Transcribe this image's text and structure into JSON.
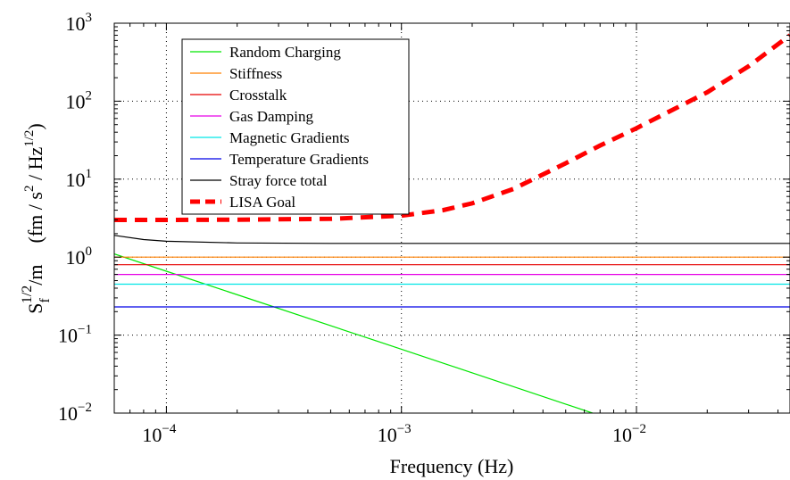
{
  "chart_data": {
    "type": "line",
    "x_scale": "log",
    "y_scale": "log",
    "xlim": [
      6e-05,
      0.045
    ],
    "ylim": [
      0.01,
      1000
    ],
    "grid": true,
    "legend_position": "top-left",
    "xlabel": "Frequency (Hz)",
    "ylabel": {
      "left_base": "S",
      "left_sub": "f",
      "left_sup": "1/2",
      "left_rest": "/m",
      "units_open": "(fm / s",
      "units_sq": "2",
      "units_mid": " / Hz",
      "units_sup": "1/2",
      "units_close": ")"
    },
    "x_ticks": [
      {
        "value": 0.0001,
        "base": "10",
        "exp": "−4"
      },
      {
        "value": 0.001,
        "base": "10",
        "exp": "−3"
      },
      {
        "value": 0.01,
        "base": "10",
        "exp": "−2"
      }
    ],
    "y_ticks": [
      {
        "value": 0.01,
        "base": "10",
        "exp": "−2"
      },
      {
        "value": 0.1,
        "base": "10",
        "exp": "−1"
      },
      {
        "value": 1,
        "base": "10",
        "exp": "0"
      },
      {
        "value": 10,
        "base": "10",
        "exp": "1"
      },
      {
        "value": 100,
        "base": "10",
        "exp": "2"
      },
      {
        "value": 1000,
        "base": "10",
        "exp": "3"
      }
    ],
    "series": [
      {
        "name": "Random Charging",
        "color": "#00e600",
        "width": 1.2,
        "dash": "",
        "x": [
          6e-05,
          0.0001,
          0.001,
          0.0065
        ],
        "y": [
          1.1,
          0.66,
          0.066,
          0.01
        ]
      },
      {
        "name": "Stiffness",
        "color": "#ff8000",
        "width": 1.2,
        "dash": "",
        "x": [
          6e-05,
          0.045
        ],
        "y": [
          1.0,
          1.0
        ]
      },
      {
        "name": "Crosstalk",
        "color": "#e60000",
        "width": 1.2,
        "dash": "",
        "x": [
          6e-05,
          0.045
        ],
        "y": [
          0.8,
          0.8
        ]
      },
      {
        "name": "Gas Damping",
        "color": "#e600e6",
        "width": 1.2,
        "dash": "",
        "x": [
          6e-05,
          0.045
        ],
        "y": [
          0.6,
          0.6
        ]
      },
      {
        "name": "Magnetic Gradients",
        "color": "#00e6e6",
        "width": 1.2,
        "dash": "",
        "x": [
          6e-05,
          0.045
        ],
        "y": [
          0.45,
          0.45
        ]
      },
      {
        "name": "Temperature Gradients",
        "color": "#0000e6",
        "width": 1.2,
        "dash": "",
        "x": [
          6e-05,
          0.045
        ],
        "y": [
          0.23,
          0.23
        ]
      },
      {
        "name": "Stray force total",
        "color": "#000000",
        "width": 1.2,
        "dash": "",
        "x": [
          6e-05,
          8e-05,
          0.0001,
          0.0002,
          0.0005,
          0.001,
          0.01,
          0.045
        ],
        "y": [
          1.9,
          1.68,
          1.6,
          1.52,
          1.5,
          1.5,
          1.5,
          1.5
        ]
      },
      {
        "name": "LISA Goal",
        "color": "#ff0000",
        "width": 5,
        "dash": "14,9",
        "x": [
          6e-05,
          0.0001,
          0.0002,
          0.0005,
          0.001,
          0.0015,
          0.002,
          0.003,
          0.005,
          0.007,
          0.01,
          0.02,
          0.03,
          0.045
        ],
        "y": [
          3.0,
          3.0,
          3.02,
          3.1,
          3.4,
          4.0,
          4.9,
          7.5,
          16,
          27,
          45,
          130,
          280,
          700
        ]
      }
    ]
  }
}
